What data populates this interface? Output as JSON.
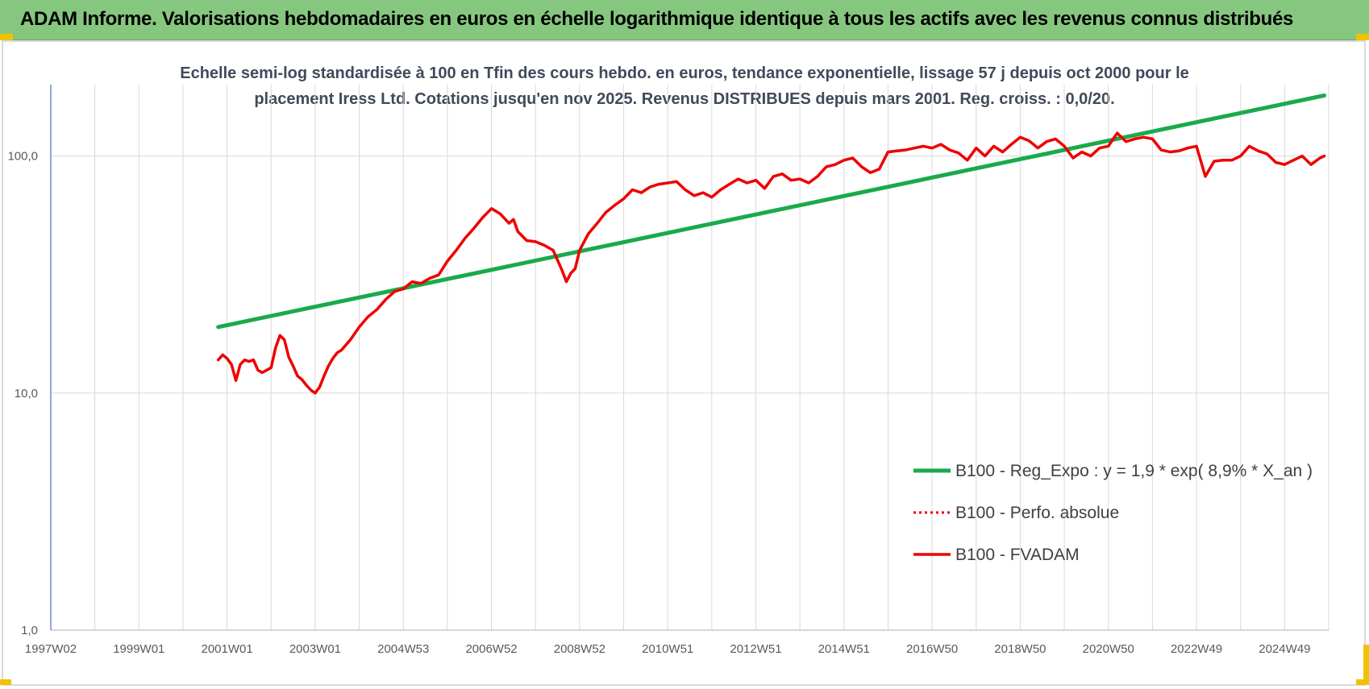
{
  "header": {
    "title": "ADAM Informe. Valorisations hebdomadaires en euros en échelle logarithmique identique à tous les actifs avec les revenus connus distribués"
  },
  "colors": {
    "header_bg": "#86c77f",
    "trend": "#1aaa4b",
    "price": "#ee0000",
    "grid": "#d9d9d9",
    "corner": "#f2c200"
  },
  "chart_data": {
    "type": "line",
    "subtitle_lines": [
      "Echelle semi-log standardisée à 100 en Tfin des cours hebdo. en euros, tendance exponentielle, lissage 57 j depuis oct 2000 pour le",
      "placement Iress Ltd. Cotations jusqu'en nov 2025. Revenus DISTRIBUES depuis mars 2001. Reg. croiss. : 0,0/20."
    ],
    "y_scale": "log",
    "ylim": [
      1,
      200
    ],
    "y_ticks": [
      {
        "value": 1,
        "label": "1,0"
      },
      {
        "value": 10,
        "label": "10,0"
      },
      {
        "value": 100,
        "label": "100,0"
      }
    ],
    "xlim": [
      1997.0,
      2026.0
    ],
    "x_ticks": [
      {
        "x": 1997.0,
        "label": "1997W02"
      },
      {
        "x": 1999.0,
        "label": "1999W01"
      },
      {
        "x": 2001.0,
        "label": "2001W01"
      },
      {
        "x": 2003.0,
        "label": "2003W01"
      },
      {
        "x": 2005.0,
        "label": "2004W53"
      },
      {
        "x": 2007.0,
        "label": "2006W52"
      },
      {
        "x": 2009.0,
        "label": "2008W52"
      },
      {
        "x": 2011.0,
        "label": "2010W51"
      },
      {
        "x": 2013.0,
        "label": "2012W51"
      },
      {
        "x": 2015.0,
        "label": "2014W51"
      },
      {
        "x": 2017.0,
        "label": "2016W50"
      },
      {
        "x": 2019.0,
        "label": "2018W50"
      },
      {
        "x": 2021.0,
        "label": "2020W50"
      },
      {
        "x": 2023.0,
        "label": "2022W49"
      },
      {
        "x": 2025.0,
        "label": "2024W49"
      }
    ],
    "legend_position": "right",
    "series": [
      {
        "name": "B100 - Reg_Expo : y = 1,9 * exp( 8,9% *  X_an )",
        "style": "solid-green",
        "x": [
          2000.8,
          2025.9
        ],
        "y": [
          19.0,
          180.0
        ]
      },
      {
        "name": "B100 - Perfo. absolue",
        "style": "dotted-red",
        "x": [],
        "y": []
      },
      {
        "name": "B100 - FVADAM",
        "style": "solid-red",
        "x": [
          2000.8,
          2000.9,
          2001.0,
          2001.1,
          2001.2,
          2001.3,
          2001.4,
          2001.5,
          2001.6,
          2001.7,
          2001.8,
          2001.9,
          2002.0,
          2002.1,
          2002.2,
          2002.3,
          2002.4,
          2002.5,
          2002.6,
          2002.7,
          2002.8,
          2002.9,
          2003.0,
          2003.1,
          2003.2,
          2003.3,
          2003.4,
          2003.5,
          2003.6,
          2003.8,
          2004.0,
          2004.2,
          2004.4,
          2004.6,
          2004.8,
          2005.0,
          2005.2,
          2005.4,
          2005.6,
          2005.8,
          2006.0,
          2006.2,
          2006.4,
          2006.6,
          2006.8,
          2007.0,
          2007.2,
          2007.4,
          2007.5,
          2007.6,
          2007.8,
          2008.0,
          2008.2,
          2008.4,
          2008.6,
          2008.7,
          2008.8,
          2008.9,
          2009.0,
          2009.2,
          2009.4,
          2009.6,
          2009.8,
          2010.0,
          2010.2,
          2010.4,
          2010.6,
          2010.8,
          2011.0,
          2011.2,
          2011.4,
          2011.6,
          2011.8,
          2012.0,
          2012.2,
          2012.4,
          2012.6,
          2012.8,
          2013.0,
          2013.2,
          2013.4,
          2013.6,
          2013.8,
          2014.0,
          2014.2,
          2014.4,
          2014.6,
          2014.8,
          2015.0,
          2015.2,
          2015.4,
          2015.6,
          2015.8,
          2016.0,
          2016.2,
          2016.4,
          2016.6,
          2016.8,
          2017.0,
          2017.2,
          2017.4,
          2017.6,
          2017.8,
          2018.0,
          2018.2,
          2018.4,
          2018.6,
          2018.8,
          2019.0,
          2019.2,
          2019.4,
          2019.6,
          2019.8,
          2020.0,
          2020.2,
          2020.4,
          2020.6,
          2020.8,
          2021.0,
          2021.2,
          2021.4,
          2021.6,
          2021.8,
          2022.0,
          2022.2,
          2022.4,
          2022.6,
          2022.8,
          2023.0,
          2023.2,
          2023.4,
          2023.6,
          2023.8,
          2024.0,
          2024.2,
          2024.4,
          2024.6,
          2024.8,
          2025.0,
          2025.2,
          2025.4,
          2025.6,
          2025.8,
          2025.9
        ],
        "y": [
          13.8,
          14.5,
          14.0,
          13.2,
          11.3,
          13.2,
          13.8,
          13.6,
          13.8,
          12.5,
          12.2,
          12.5,
          12.8,
          15.5,
          17.5,
          16.8,
          14.2,
          13.0,
          11.8,
          11.4,
          10.8,
          10.3,
          10.0,
          10.6,
          11.8,
          13.0,
          14.0,
          14.8,
          15.2,
          16.8,
          19.0,
          21.0,
          22.5,
          24.8,
          26.8,
          27.5,
          29.5,
          29.0,
          30.5,
          31.5,
          36.0,
          40.0,
          45.0,
          49.5,
          55.0,
          60.0,
          57.0,
          52.0,
          54.0,
          48.0,
          44.0,
          43.5,
          42.0,
          40.0,
          33.0,
          29.5,
          32.0,
          33.5,
          40.0,
          47.0,
          52.0,
          58.0,
          62.0,
          66.0,
          72.0,
          70.0,
          74.0,
          76.0,
          77.0,
          78.0,
          72.0,
          68.0,
          70.0,
          67.0,
          72.0,
          76.0,
          80.0,
          77.0,
          79.0,
          73.0,
          82.0,
          84.0,
          79.0,
          80.0,
          77.0,
          82.0,
          90.0,
          92.0,
          96.0,
          98.0,
          90.0,
          85.0,
          88.0,
          104.0,
          105.0,
          106.0,
          108.0,
          110.0,
          108.0,
          112.0,
          106.0,
          103.0,
          96.0,
          108.0,
          100.0,
          110.0,
          104.0,
          112.0,
          120.0,
          116.0,
          108.0,
          115.0,
          118.0,
          110.0,
          98.0,
          104.0,
          100.0,
          108.0,
          110.0,
          125.0,
          115.0,
          118.0,
          120.0,
          118.0,
          106.0,
          104.0,
          105.0,
          108.0,
          110.0,
          82.0,
          95.0,
          96.0,
          96.0,
          100.0,
          110.0,
          105.0,
          102.0,
          94.0,
          92.0,
          96.0,
          100.0,
          92.0,
          98.0,
          100.0
        ]
      }
    ]
  }
}
